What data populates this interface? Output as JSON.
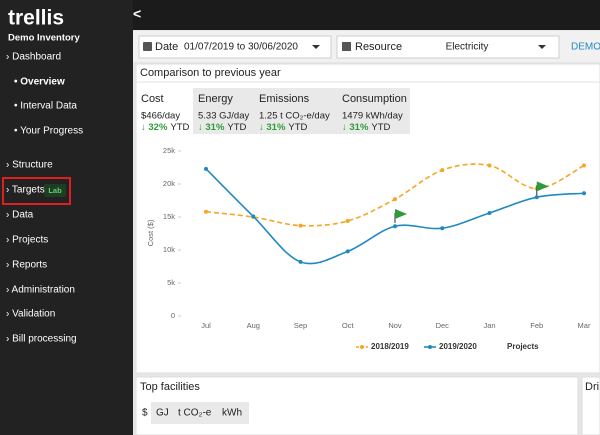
{
  "sidebar": {
    "logo": "trellis",
    "inventory": "Demo Inventory",
    "items": [
      {
        "label": "› Dashboard"
      },
      {
        "label": "• Overview"
      },
      {
        "label": "• Interval Data"
      },
      {
        "label": "• Your Progress"
      },
      {
        "label": "› Structure"
      },
      {
        "label": "› Targets",
        "badge": "Lab"
      },
      {
        "label": "› Data"
      },
      {
        "label": "› Projects"
      },
      {
        "label": "› Reports"
      },
      {
        "label": "› Administration"
      },
      {
        "label": "› Validation"
      },
      {
        "label": "› Bill processing"
      }
    ]
  },
  "topbar": {
    "back": "<"
  },
  "filters": {
    "date_label": "Date",
    "date_value": "01/07/2019 to 30/06/2020",
    "resource_label": "Resource",
    "resource_value": "Electricity",
    "extra": "DEMO"
  },
  "panel": {
    "title": "Comparison to previous year",
    "metrics": [
      {
        "label": "Cost",
        "value": "$466/day",
        "change": "↓ 32%",
        "period": "YTD"
      },
      {
        "label": "Energy",
        "value": "5.33 GJ/day",
        "change": "↓ 31%",
        "period": "YTD"
      },
      {
        "label": "Emissions",
        "value": "1.25 t CO₂-e/day",
        "change": "↓ 31%",
        "period": "YTD"
      },
      {
        "label": "Consumption",
        "value": "1479 kWh/day",
        "change": "↓ 31%",
        "period": "YTD"
      }
    ]
  },
  "chart_data": {
    "type": "line",
    "y_label": "Cost ($)",
    "categories": [
      "Jul",
      "Aug",
      "Sep",
      "Oct",
      "Nov",
      "Dec",
      "Jan",
      "Feb",
      "Mar"
    ],
    "ylim": [
      0,
      25000
    ],
    "yticks": [
      {
        "value": 0,
        "label": "0"
      },
      {
        "value": 5000,
        "label": "5k"
      },
      {
        "value": 10000,
        "label": "10k"
      },
      {
        "value": 15000,
        "label": "15k"
      },
      {
        "value": 20000,
        "label": "20k"
      },
      {
        "value": 25000,
        "label": "25k"
      }
    ],
    "series": [
      {
        "name": "2018/2019",
        "color": "#f5a623",
        "dashed": true,
        "values": [
          15800,
          15000,
          13700,
          14400,
          17700,
          22100,
          22800,
          19300,
          22800
        ]
      },
      {
        "name": "2019/2020",
        "color": "#1f8ac0",
        "dashed": false,
        "values": [
          22300,
          15100,
          8200,
          9800,
          13600,
          13300,
          15600,
          18000,
          18600
        ]
      }
    ],
    "projects": {
      "name": "Projects",
      "color": "#2e9b3a",
      "points": [
        {
          "category": "Nov",
          "value": 15600
        },
        {
          "category": "Feb",
          "value": 19800
        }
      ]
    }
  },
  "facilities": {
    "title": "Top facilities",
    "units": [
      "$",
      "GJ",
      "t CO₂-e",
      "kWh"
    ]
  },
  "side_panel": {
    "title": "Dri"
  }
}
